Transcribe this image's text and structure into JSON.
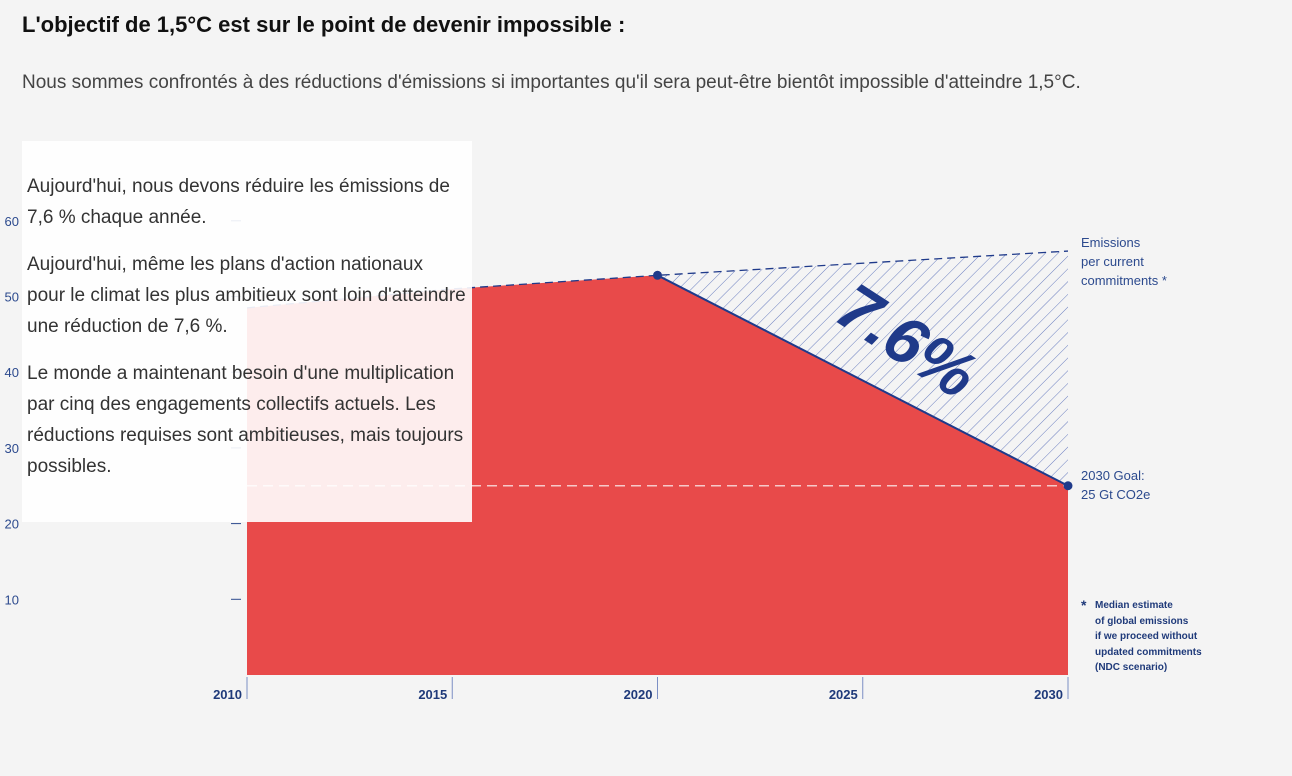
{
  "title": "L'objectif de 1,5°C est sur le point de devenir impossible :",
  "subtitle": "Nous sommes confrontés à des réductions d'émissions si importantes qu'il sera peut-être bientôt impossible d'atteindre 1,5°C.",
  "overlay": {
    "paragraphs": [
      "Aujourd'hui, nous devons réduire les émissions de 7,6 % chaque année.",
      "Aujourd'hui, même les plans d'action nationaux pour le climat les plus ambitieux sont loin d'atteindre une réduction de 7,6 %.",
      "Le monde a maintenant besoin d'une multiplication par cinq des engagements collectifs actuels. Les réductions requises sont ambitieuses, mais toujours possibles."
    ]
  },
  "chart_data": {
    "type": "area",
    "x_ticks": [
      "2010",
      "2015",
      "2020",
      "2025",
      "2030"
    ],
    "y_ticks": [
      10,
      20,
      30,
      40,
      50,
      60
    ],
    "xlim": [
      2010,
      2030
    ],
    "ylim": [
      0,
      60
    ],
    "series": [
      {
        "name": "",
        "x": [
          2010,
          2015,
          2020,
          2030
        ],
        "y": [
          48.5,
          51,
          52.8,
          25
        ],
        "color": "#e84a4a"
      }
    ],
    "commitments": {
      "x": [
        2010,
        2015,
        2020,
        2030
      ],
      "y": [
        48.5,
        51,
        52.8,
        56
      ],
      "color": "#1f3a8a"
    },
    "goal_line": 25,
    "big_label": "7.6%",
    "annotations": {
      "commitments_label": "Emissions\nper current\ncommitments *",
      "goal_label": "2030 Goal:\n25 Gt CO2e",
      "note_star": "*",
      "note": "Median estimate\nof global emissions\nif we proceed without\nupdated commitments\n(NDC scenario)"
    },
    "colors": {
      "axis": "#2c4a8e",
      "red": "#e84a4a",
      "navy": "#1f3a8a"
    }
  }
}
